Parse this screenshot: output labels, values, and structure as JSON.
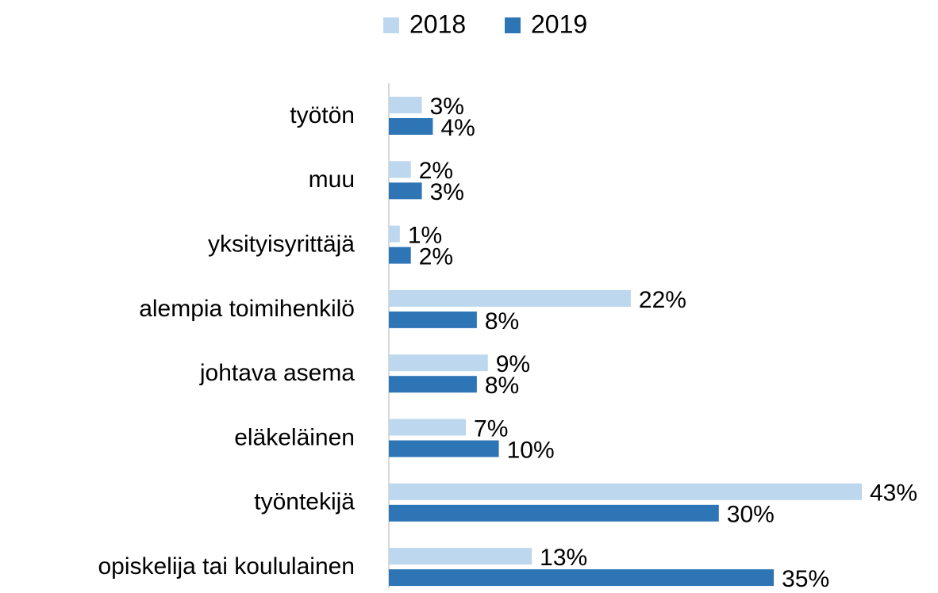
{
  "chart_data": {
    "type": "hbar",
    "categories": [
      "työtön",
      "muu",
      "yksityisyrittäjä",
      "alempia toimihenkilö",
      "johtava asema",
      "eläkeläinen",
      "työntekijä",
      "opiskelija tai koululainen"
    ],
    "series": [
      {
        "name": "2018",
        "color": "#bdd7ee",
        "values": [
          3,
          2,
          1,
          22,
          9,
          7,
          43,
          13
        ],
        "value_labels": [
          "3%",
          "2%",
          "1%",
          "22%",
          "9%",
          "7%",
          "43%",
          "13%"
        ]
      },
      {
        "name": "2019",
        "color": "#2e75b6",
        "values": [
          4,
          3,
          2,
          8,
          8,
          10,
          30,
          35
        ],
        "value_labels": [
          "4%",
          "3%",
          "2%",
          "8%",
          "8%",
          "10%",
          "30%",
          "35%"
        ]
      }
    ],
    "legend": "top"
  }
}
